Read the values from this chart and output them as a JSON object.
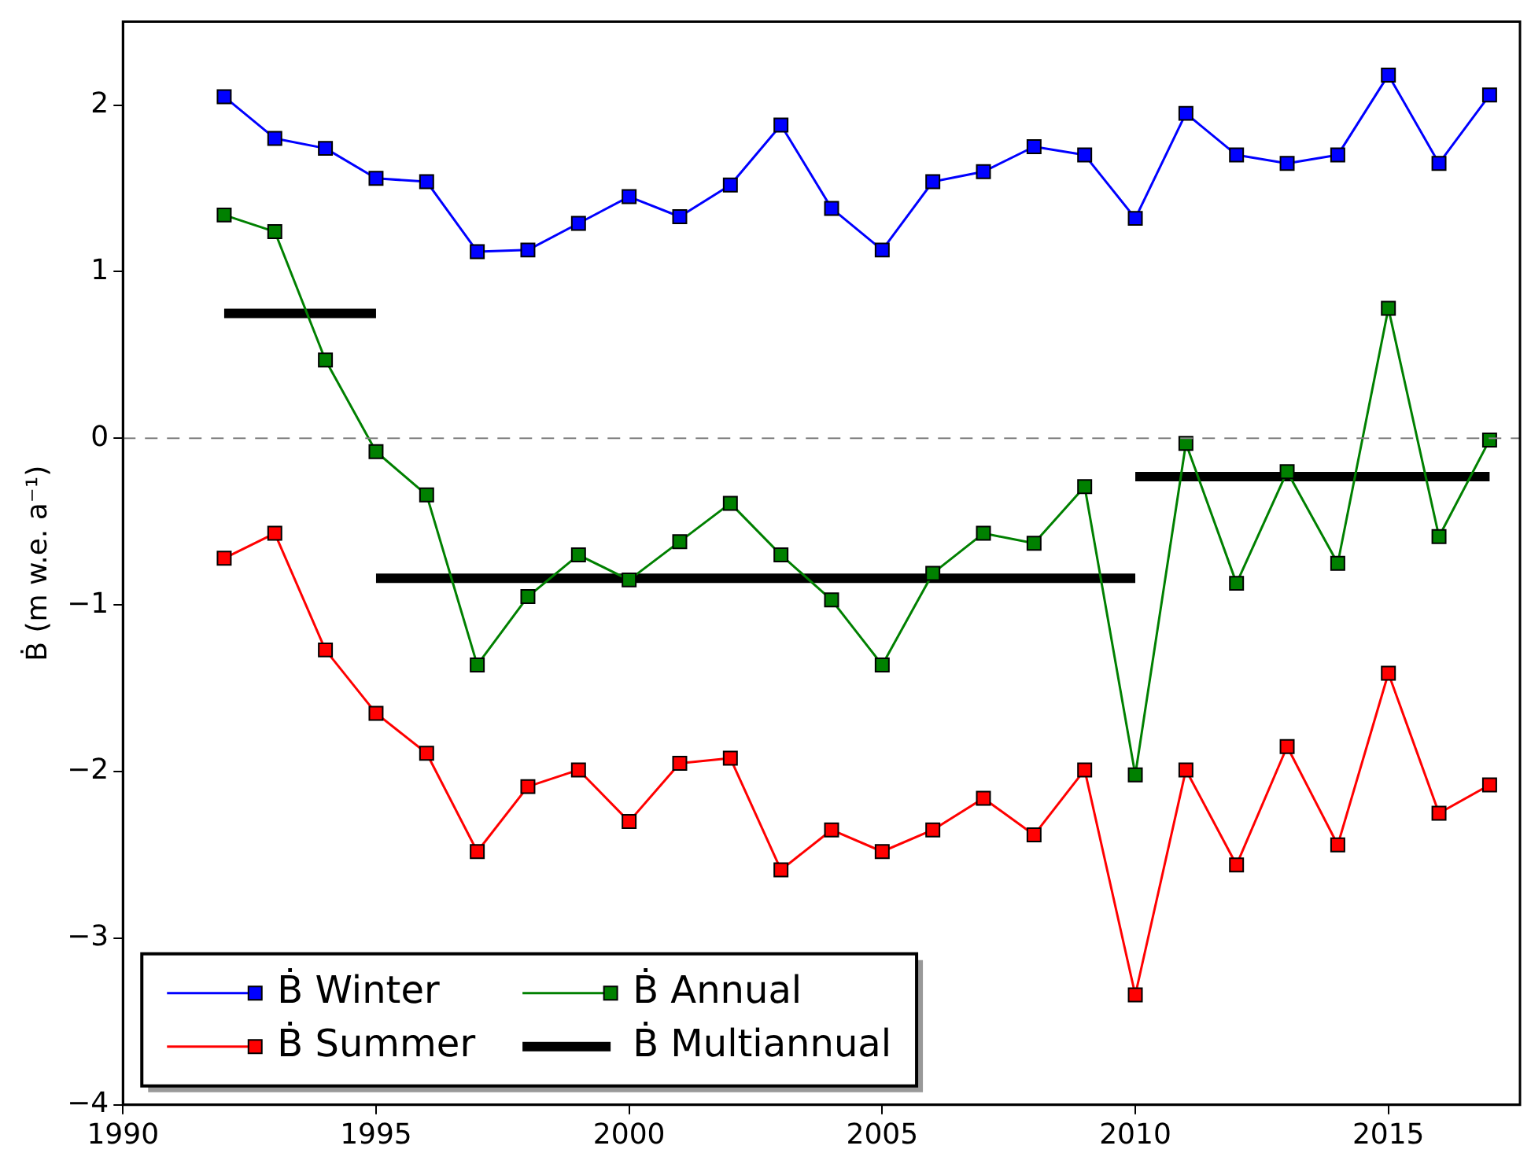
{
  "chart_data": {
    "type": "line",
    "ylabel": "Ḃ (m w.e. a⁻¹)",
    "x": [
      1992,
      1993,
      1994,
      1995,
      1996,
      1997,
      1998,
      1999,
      2000,
      2001,
      2002,
      2003,
      2004,
      2005,
      2006,
      2007,
      2008,
      2009,
      2010,
      2011,
      2012,
      2013,
      2014,
      2015,
      2016,
      2017
    ],
    "xlim": [
      1990,
      2017.6
    ],
    "xticks": [
      1990,
      1995,
      2000,
      2005,
      2010,
      2015
    ],
    "ylim": [
      -4,
      2.5
    ],
    "yticks": [
      -4,
      -3,
      -2,
      -1,
      0,
      1,
      2
    ],
    "grid": false,
    "legend": "bottom left",
    "marker": "square",
    "series": [
      {
        "name": "Ḃ Winter",
        "color": "#0000ff",
        "values": [
          2.05,
          1.8,
          1.74,
          1.56,
          1.54,
          1.12,
          1.13,
          1.29,
          1.45,
          1.33,
          1.52,
          1.88,
          1.38,
          1.13,
          1.54,
          1.6,
          1.75,
          1.7,
          1.32,
          1.95,
          1.7,
          1.65,
          1.7,
          2.18,
          1.65,
          2.06
        ]
      },
      {
        "name": "Ḃ Summer",
        "color": "#ff0000",
        "values": [
          -0.72,
          -0.57,
          -1.27,
          -1.65,
          -1.89,
          -2.48,
          -2.09,
          -1.99,
          -2.3,
          -1.95,
          -1.92,
          -2.59,
          -2.35,
          -2.48,
          -2.35,
          -2.16,
          -2.38,
          -1.99,
          -3.34,
          -1.99,
          -2.56,
          -1.85,
          -2.44,
          -1.41,
          -2.25,
          -2.08
        ]
      },
      {
        "name": "Ḃ Annual",
        "color": "#008000",
        "values": [
          1.34,
          1.24,
          0.47,
          -0.08,
          -0.34,
          -1.36,
          -0.95,
          -0.7,
          -0.85,
          -0.62,
          -0.39,
          -0.7,
          -0.97,
          -1.36,
          -0.81,
          -0.57,
          -0.63,
          -0.29,
          -2.02,
          -0.03,
          -0.87,
          -0.2,
          -0.75,
          0.78,
          -0.59,
          -0.01
        ]
      },
      {
        "name": "Ḃ Multiannual",
        "color": "#000000",
        "marker": "none",
        "x": [
          1992,
          1995,
          1995,
          2010,
          2010,
          2017
        ],
        "values": [
          0.75,
          0.75,
          -0.84,
          -0.84,
          -0.23,
          -0.23
        ]
      }
    ],
    "ref_lines": [
      {
        "axis": "y",
        "value": 0,
        "color": "#808080",
        "line_style": "dashed"
      }
    ]
  }
}
